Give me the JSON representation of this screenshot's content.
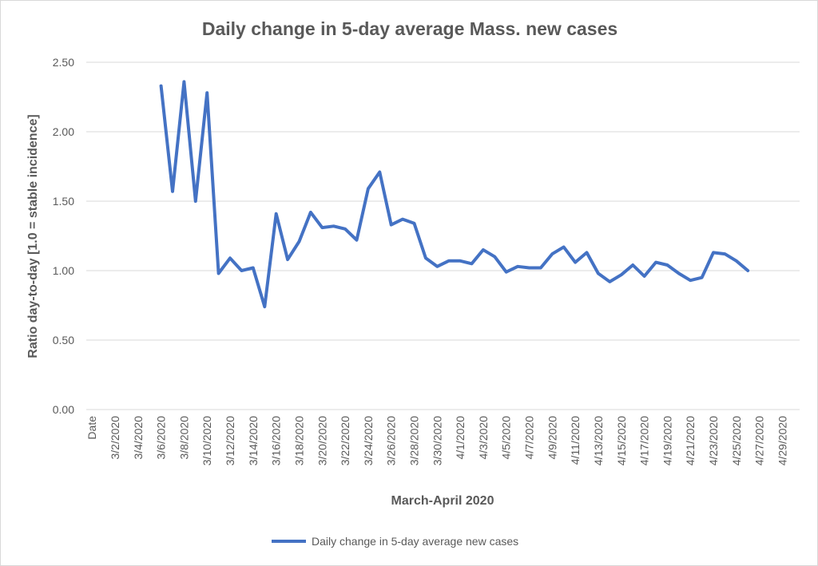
{
  "chart_data": {
    "type": "line",
    "title": "Daily change in 5-day average Mass. new cases",
    "xlabel": "March-April 2020",
    "ylabel": "Ratio day-to-day  [1.0 = stable incidence]",
    "ylim": [
      0,
      2.5
    ],
    "y_ticks": [
      "0.00",
      "0.50",
      "1.00",
      "1.50",
      "2.00",
      "2.50"
    ],
    "grid": "horizontal",
    "legend_position": "bottom",
    "x_tick_labels": [
      "Date",
      "3/2/2020",
      "3/4/2020",
      "3/6/2020",
      "3/8/2020",
      "3/10/2020",
      "3/12/2020",
      "3/14/2020",
      "3/16/2020",
      "3/18/2020",
      "3/20/2020",
      "3/22/2020",
      "3/24/2020",
      "3/26/2020",
      "3/28/2020",
      "3/30/2020",
      "4/1/2020",
      "4/3/2020",
      "4/5/2020",
      "4/7/2020",
      "4/9/2020",
      "4/11/2020",
      "4/13/2020",
      "4/15/2020",
      "4/17/2020",
      "4/19/2020",
      "4/21/2020",
      "4/23/2020",
      "4/25/2020",
      "4/27/2020",
      "4/29/2020"
    ],
    "x": [
      "3/6/2020",
      "3/7/2020",
      "3/8/2020",
      "3/9/2020",
      "3/10/2020",
      "3/11/2020",
      "3/12/2020",
      "3/13/2020",
      "3/14/2020",
      "3/15/2020",
      "3/16/2020",
      "3/17/2020",
      "3/18/2020",
      "3/19/2020",
      "3/20/2020",
      "3/21/2020",
      "3/22/2020",
      "3/23/2020",
      "3/24/2020",
      "3/25/2020",
      "3/26/2020",
      "3/27/2020",
      "3/28/2020",
      "3/29/2020",
      "3/30/2020",
      "3/31/2020",
      "4/1/2020",
      "4/2/2020",
      "4/3/2020",
      "4/4/2020",
      "4/5/2020",
      "4/6/2020",
      "4/7/2020",
      "4/8/2020",
      "4/9/2020",
      "4/10/2020",
      "4/11/2020",
      "4/12/2020",
      "4/13/2020",
      "4/14/2020",
      "4/15/2020",
      "4/16/2020",
      "4/17/2020",
      "4/18/2020",
      "4/19/2020",
      "4/20/2020",
      "4/21/2020",
      "4/22/2020",
      "4/23/2020",
      "4/24/2020",
      "4/25/2020",
      "4/26/2020"
    ],
    "series": [
      {
        "name": "Daily change in 5-day average new cases",
        "color": "#4472c4",
        "values": [
          2.33,
          1.57,
          2.36,
          1.5,
          2.28,
          0.98,
          1.09,
          1.0,
          1.02,
          0.74,
          1.41,
          1.08,
          1.21,
          1.42,
          1.31,
          1.32,
          1.3,
          1.22,
          1.59,
          1.71,
          1.33,
          1.37,
          1.34,
          1.09,
          1.03,
          1.07,
          1.07,
          1.05,
          1.15,
          1.1,
          0.99,
          1.03,
          1.02,
          1.02,
          1.12,
          1.17,
          1.06,
          1.13,
          0.98,
          0.92,
          0.97,
          1.04,
          0.96,
          1.06,
          1.04,
          0.98,
          0.93,
          0.95,
          1.13,
          1.12,
          1.07,
          1.0
        ]
      }
    ]
  }
}
